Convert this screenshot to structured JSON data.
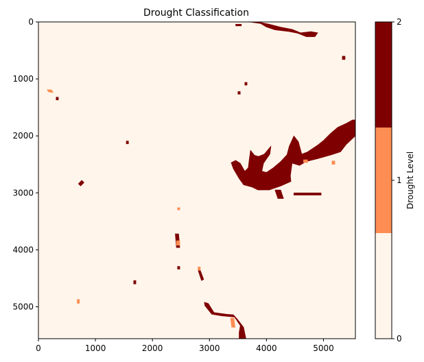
{
  "chart_data": {
    "type": "heatmap",
    "title": "Drought Classification",
    "xlabel": "",
    "ylabel": "",
    "xlim": [
      0,
      5560
    ],
    "ylim": [
      5560,
      0
    ],
    "xticks": [
      0,
      1000,
      2000,
      3000,
      4000,
      5000
    ],
    "yticks": [
      0,
      1000,
      2000,
      3000,
      4000,
      5000
    ],
    "grid": false,
    "colorbar": {
      "label": "Drought Level",
      "range": [
        0,
        2
      ],
      "ticks": [
        0,
        1,
        2
      ],
      "levels": [
        {
          "level": 0,
          "color": "#fff5eb"
        },
        {
          "level": 1,
          "color": "#fd8d52"
        },
        {
          "level": 2,
          "color": "#7f0000"
        }
      ]
    },
    "background_level": 0,
    "regions": [
      {
        "level": 2,
        "points": [
          [
            3570,
            0
          ],
          [
            3700,
            0
          ],
          [
            3900,
            30
          ],
          [
            4000,
            90
          ],
          [
            4150,
            140
          ],
          [
            4400,
            170
          ],
          [
            4550,
            200
          ],
          [
            4700,
            260
          ],
          [
            4850,
            260
          ],
          [
            4900,
            190
          ],
          [
            4780,
            170
          ],
          [
            4600,
            190
          ],
          [
            4450,
            130
          ],
          [
            4250,
            90
          ],
          [
            4050,
            40
          ],
          [
            3900,
            10
          ]
        ]
      },
      {
        "level": 2,
        "points": [
          [
            3460,
            40
          ],
          [
            3560,
            40
          ],
          [
            3560,
            70
          ],
          [
            3460,
            70
          ]
        ]
      },
      {
        "level": 2,
        "points": [
          [
            5330,
            600
          ],
          [
            5380,
            600
          ],
          [
            5380,
            660
          ],
          [
            5330,
            660
          ]
        ]
      },
      {
        "level": 2,
        "points": [
          [
            3620,
            1060
          ],
          [
            3660,
            1060
          ],
          [
            3660,
            1110
          ],
          [
            3620,
            1110
          ]
        ]
      },
      {
        "level": 2,
        "points": [
          [
            3500,
            1220
          ],
          [
            3540,
            1220
          ],
          [
            3540,
            1270
          ],
          [
            3500,
            1270
          ]
        ]
      },
      {
        "level": 2,
        "points": [
          [
            5510,
            1720
          ],
          [
            5560,
            1720
          ],
          [
            5560,
            2000
          ],
          [
            5400,
            2150
          ],
          [
            5300,
            2280
          ],
          [
            5150,
            2330
          ],
          [
            4900,
            2400
          ],
          [
            4700,
            2450
          ],
          [
            4580,
            2520
          ],
          [
            4450,
            2480
          ],
          [
            4420,
            2700
          ],
          [
            4430,
            2800
          ],
          [
            4250,
            2880
          ],
          [
            4050,
            2950
          ],
          [
            3850,
            2950
          ],
          [
            3750,
            2900
          ],
          [
            3600,
            2860
          ],
          [
            3520,
            2750
          ],
          [
            3420,
            2580
          ],
          [
            3380,
            2470
          ],
          [
            3460,
            2430
          ],
          [
            3540,
            2480
          ],
          [
            3620,
            2620
          ],
          [
            3680,
            2560
          ],
          [
            3700,
            2400
          ],
          [
            3720,
            2250
          ],
          [
            3790,
            2340
          ],
          [
            3860,
            2360
          ],
          [
            3960,
            2320
          ],
          [
            4080,
            2180
          ],
          [
            4060,
            2320
          ],
          [
            3950,
            2480
          ],
          [
            3920,
            2620
          ],
          [
            4000,
            2640
          ],
          [
            4120,
            2560
          ],
          [
            4250,
            2450
          ],
          [
            4360,
            2330
          ],
          [
            4400,
            2180
          ],
          [
            4480,
            2000
          ],
          [
            4560,
            2100
          ],
          [
            4620,
            2320
          ],
          [
            4720,
            2280
          ],
          [
            4900,
            2160
          ],
          [
            5000,
            2080
          ],
          [
            5120,
            1960
          ],
          [
            5250,
            1850
          ],
          [
            5400,
            1780
          ]
        ]
      },
      {
        "level": 2,
        "points": [
          [
            4150,
            2950
          ],
          [
            4250,
            2950
          ],
          [
            4300,
            3100
          ],
          [
            4200,
            3100
          ]
        ]
      },
      {
        "level": 2,
        "points": [
          [
            4480,
            3000
          ],
          [
            4960,
            3000
          ],
          [
            4960,
            3040
          ],
          [
            4480,
            3040
          ]
        ]
      },
      {
        "level": 2,
        "points": [
          [
            1540,
            2090
          ],
          [
            1580,
            2090
          ],
          [
            1580,
            2140
          ],
          [
            1540,
            2140
          ]
        ]
      },
      {
        "level": 2,
        "points": [
          [
            700,
            2840
          ],
          [
            760,
            2780
          ],
          [
            800,
            2820
          ],
          [
            740,
            2880
          ]
        ]
      },
      {
        "level": 2,
        "points": [
          [
            310,
            1320
          ],
          [
            350,
            1320
          ],
          [
            350,
            1370
          ],
          [
            310,
            1370
          ]
        ]
      },
      {
        "level": 2,
        "points": [
          [
            2400,
            3720
          ],
          [
            2460,
            3720
          ],
          [
            2480,
            3960
          ],
          [
            2420,
            3960
          ]
        ]
      },
      {
        "level": 2,
        "points": [
          [
            2440,
            4290
          ],
          [
            2480,
            4290
          ],
          [
            2480,
            4340
          ],
          [
            2440,
            4340
          ]
        ]
      },
      {
        "level": 2,
        "points": [
          [
            1670,
            4540
          ],
          [
            1710,
            4540
          ],
          [
            1710,
            4600
          ],
          [
            1670,
            4600
          ]
        ]
      },
      {
        "level": 2,
        "points": [
          [
            2800,
            4360
          ],
          [
            2840,
            4360
          ],
          [
            2900,
            4520
          ],
          [
            2860,
            4540
          ]
        ]
      },
      {
        "level": 2,
        "points": [
          [
            2910,
            4920
          ],
          [
            2980,
            4940
          ],
          [
            3080,
            5100
          ],
          [
            3300,
            5130
          ],
          [
            3420,
            5140
          ],
          [
            3500,
            5230
          ],
          [
            3600,
            5360
          ],
          [
            3640,
            5560
          ],
          [
            3520,
            5560
          ],
          [
            3520,
            5450
          ],
          [
            3540,
            5330
          ],
          [
            3440,
            5180
          ],
          [
            3220,
            5160
          ],
          [
            3040,
            5130
          ],
          [
            2920,
            4980
          ]
        ]
      },
      {
        "level": 1,
        "points": [
          [
            150,
            1190
          ],
          [
            230,
            1190
          ],
          [
            260,
            1240
          ],
          [
            180,
            1230
          ]
        ]
      },
      {
        "level": 1,
        "points": [
          [
            2440,
            3260
          ],
          [
            2480,
            3260
          ],
          [
            2480,
            3300
          ],
          [
            2440,
            3300
          ]
        ]
      },
      {
        "level": 1,
        "points": [
          [
            2420,
            3840
          ],
          [
            2480,
            3840
          ],
          [
            2480,
            3920
          ],
          [
            2420,
            3920
          ]
        ]
      },
      {
        "level": 1,
        "points": [
          [
            680,
            4870
          ],
          [
            720,
            4870
          ],
          [
            720,
            4940
          ],
          [
            680,
            4940
          ]
        ]
      },
      {
        "level": 1,
        "points": [
          [
            2800,
            4300
          ],
          [
            2840,
            4300
          ],
          [
            2840,
            4360
          ],
          [
            2800,
            4360
          ]
        ]
      },
      {
        "level": 1,
        "points": [
          [
            3370,
            5200
          ],
          [
            3430,
            5200
          ],
          [
            3450,
            5360
          ],
          [
            3390,
            5360
          ]
        ]
      },
      {
        "level": 1,
        "points": [
          [
            5150,
            2440
          ],
          [
            5200,
            2440
          ],
          [
            5200,
            2500
          ],
          [
            5150,
            2500
          ]
        ]
      },
      {
        "level": 1,
        "points": [
          [
            4650,
            2420
          ],
          [
            4720,
            2420
          ],
          [
            4720,
            2470
          ],
          [
            4650,
            2470
          ]
        ]
      }
    ]
  }
}
